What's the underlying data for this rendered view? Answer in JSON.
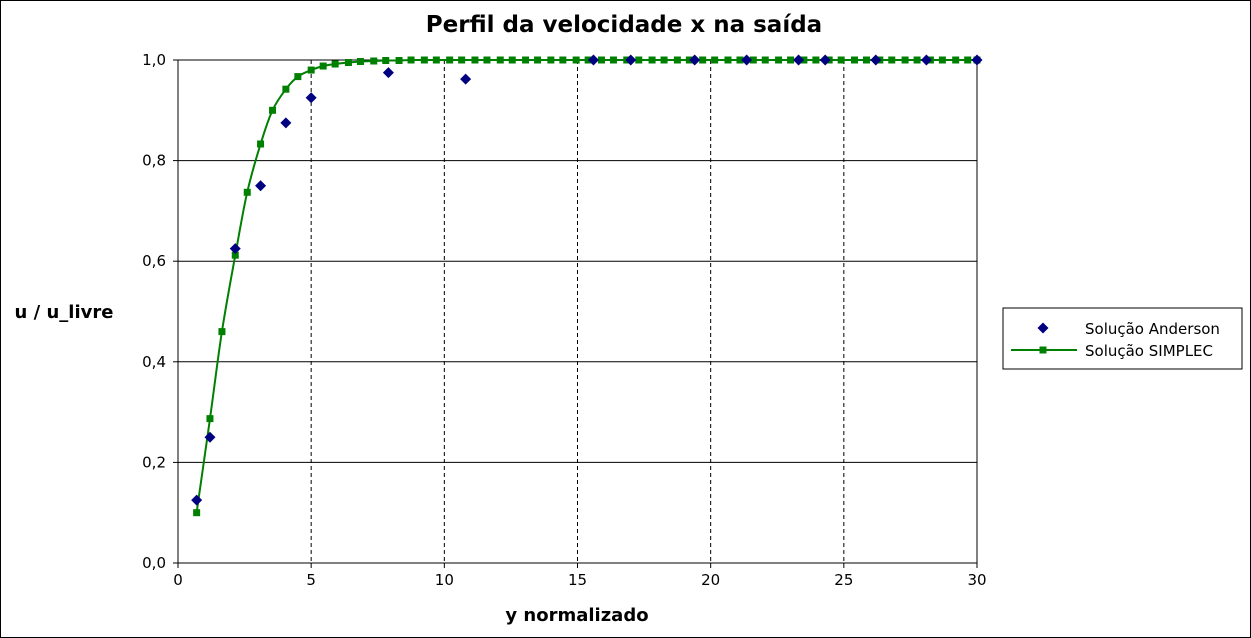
{
  "chart_data": {
    "type": "scatter",
    "title": "Perfil da velocidade x na saída",
    "xlabel": "y normalizado",
    "ylabel": "u / u_livre",
    "xlim": [
      0,
      30
    ],
    "ylim": [
      0,
      1
    ],
    "x_ticks": [
      "0",
      "5",
      "10",
      "15",
      "20",
      "25",
      "30"
    ],
    "y_ticks": [
      "0,0",
      "0,2",
      "0,4",
      "0,6",
      "0,8",
      "1,0"
    ],
    "x_grid": "vertical dashed lines",
    "y_grid": "horizontal solid lines",
    "legend_position": "right",
    "series": [
      {
        "name": "Solução Anderson",
        "style": "markers",
        "marker": "diamond",
        "color": "#000080",
        "points": [
          [
            0.7,
            0.125
          ],
          [
            1.2,
            0.25
          ],
          [
            2.15,
            0.625
          ],
          [
            3.1,
            0.75
          ],
          [
            4.05,
            0.875
          ],
          [
            5.0,
            0.925
          ],
          [
            7.9,
            0.975
          ],
          [
            10.8,
            0.962
          ],
          [
            15.6,
            1.0
          ],
          [
            17.0,
            1.0
          ],
          [
            19.4,
            1.0
          ],
          [
            21.35,
            1.0
          ],
          [
            23.3,
            1.0
          ],
          [
            24.3,
            1.0
          ],
          [
            26.2,
            1.0
          ],
          [
            28.1,
            1.0
          ],
          [
            30.0,
            1.0
          ]
        ]
      },
      {
        "name": "Solução SIMPLEC",
        "style": "line+markers",
        "marker": "square",
        "color": "#008000",
        "points": [
          [
            0.7,
            0.1
          ],
          [
            1.2,
            0.287
          ],
          [
            1.65,
            0.46
          ],
          [
            2.15,
            0.612
          ],
          [
            2.6,
            0.737
          ],
          [
            3.1,
            0.833
          ],
          [
            3.55,
            0.9
          ],
          [
            4.05,
            0.942
          ],
          [
            4.5,
            0.967
          ],
          [
            5.0,
            0.98
          ],
          [
            5.45,
            0.988
          ],
          [
            5.9,
            0.992
          ],
          [
            6.4,
            0.995
          ],
          [
            6.85,
            0.997
          ],
          [
            7.35,
            0.998
          ],
          [
            7.8,
            0.999
          ],
          [
            8.3,
            0.999
          ],
          [
            8.75,
            1.0
          ],
          [
            9.25,
            1.0
          ],
          [
            9.7,
            1.0
          ],
          [
            10.2,
            1.0
          ],
          [
            10.65,
            1.0
          ],
          [
            11.15,
            1.0
          ],
          [
            11.6,
            1.0
          ],
          [
            12.1,
            1.0
          ],
          [
            12.55,
            1.0
          ],
          [
            13.05,
            1.0
          ],
          [
            13.5,
            1.0
          ],
          [
            14.0,
            1.0
          ],
          [
            14.45,
            1.0
          ],
          [
            14.95,
            1.0
          ],
          [
            15.4,
            1.0
          ],
          [
            15.9,
            1.0
          ],
          [
            16.35,
            1.0
          ],
          [
            16.85,
            1.0
          ],
          [
            17.3,
            1.0
          ],
          [
            17.8,
            1.0
          ],
          [
            18.25,
            1.0
          ],
          [
            18.75,
            1.0
          ],
          [
            19.2,
            1.0
          ],
          [
            19.7,
            1.0
          ],
          [
            20.15,
            1.0
          ],
          [
            20.65,
            1.0
          ],
          [
            21.1,
            1.0
          ],
          [
            21.6,
            1.0
          ],
          [
            22.05,
            1.0
          ],
          [
            22.55,
            1.0
          ],
          [
            23.0,
            1.0
          ],
          [
            23.5,
            1.0
          ],
          [
            23.95,
            1.0
          ],
          [
            24.45,
            1.0
          ],
          [
            24.9,
            1.0
          ],
          [
            25.4,
            1.0
          ],
          [
            25.85,
            1.0
          ],
          [
            26.35,
            1.0
          ],
          [
            26.8,
            1.0
          ],
          [
            27.3,
            1.0
          ],
          [
            27.75,
            1.0
          ],
          [
            28.25,
            1.0
          ],
          [
            28.7,
            1.0
          ],
          [
            29.2,
            1.0
          ],
          [
            29.65,
            1.0
          ],
          [
            30.0,
            1.0
          ]
        ]
      }
    ]
  }
}
